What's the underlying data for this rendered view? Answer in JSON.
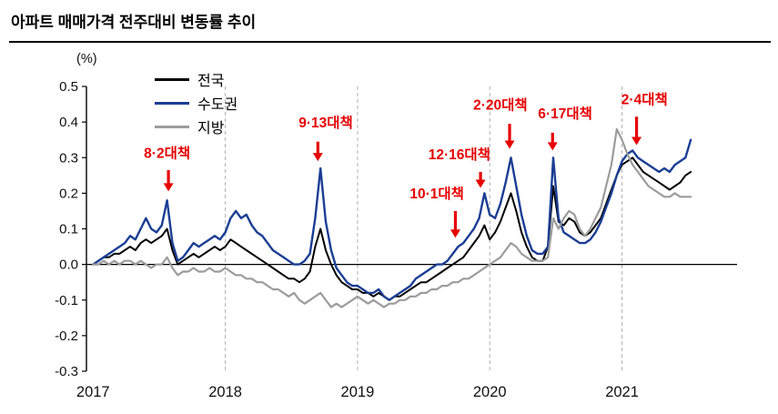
{
  "chart_data": {
    "type": "line",
    "title": "아파트 매매가격 전주대비 변동률 추이",
    "unit_label": "(%)",
    "xlabel": "",
    "ylabel": "(%)",
    "annotation_color": "#e60000",
    "gridline_color": "#b0b0b0",
    "legend": {
      "position": "top-left-inside"
    },
    "x_axis": {
      "min": 2016.95,
      "max": 2021.87,
      "tick_years": [
        2017,
        2018,
        2019,
        2020,
        2021
      ],
      "gridline_years": [
        2018,
        2019,
        2020,
        2021
      ]
    },
    "y_axis": {
      "min": -0.3,
      "max": 0.5,
      "ticks": [
        0.5,
        0.4,
        0.3,
        0.2,
        0.1,
        0,
        -0.1,
        -0.2,
        -0.3
      ]
    },
    "x_start": 2017.0,
    "x_step": 0.04,
    "series": [
      {
        "name": "전국",
        "key": "nationwide",
        "color": "#000000",
        "width": 2,
        "values": [
          0,
          0.01,
          0.02,
          0.02,
          0.03,
          0.03,
          0.04,
          0.05,
          0.04,
          0.06,
          0.07,
          0.06,
          0.07,
          0.08,
          0.1,
          0.04,
          0,
          0.01,
          0.02,
          0.03,
          0.02,
          0.03,
          0.04,
          0.05,
          0.04,
          0.05,
          0.07,
          0.06,
          0.05,
          0.04,
          0.03,
          0.02,
          0.01,
          0,
          -0.01,
          -0.02,
          -0.03,
          -0.04,
          -0.04,
          -0.05,
          -0.04,
          -0.02,
          0.05,
          0.1,
          0.04,
          0,
          -0.03,
          -0.05,
          -0.06,
          -0.07,
          -0.07,
          -0.08,
          -0.08,
          -0.09,
          -0.08,
          -0.09,
          -0.1,
          -0.09,
          -0.09,
          -0.08,
          -0.07,
          -0.06,
          -0.05,
          -0.05,
          -0.04,
          -0.03,
          -0.02,
          -0.01,
          0,
          0.01,
          0.02,
          0.04,
          0.06,
          0.08,
          0.11,
          0.07,
          0.09,
          0.12,
          0.16,
          0.2,
          0.15,
          0.09,
          0.05,
          0.02,
          0.01,
          0.01,
          0.05,
          0.22,
          0.12,
          0.11,
          0.13,
          0.12,
          0.09,
          0.08,
          0.09,
          0.11,
          0.13,
          0.17,
          0.21,
          0.25,
          0.28,
          0.29,
          0.3,
          0.28,
          0.26,
          0.25,
          0.24,
          0.23,
          0.22,
          0.21,
          0.22,
          0.23,
          0.25,
          0.26
        ]
      },
      {
        "name": "수도권",
        "key": "metro",
        "color": "#1b3e94",
        "width": 2.4,
        "values": [
          0,
          0.01,
          0.02,
          0.03,
          0.04,
          0.05,
          0.06,
          0.08,
          0.07,
          0.1,
          0.13,
          0.1,
          0.09,
          0.11,
          0.18,
          0.06,
          0.01,
          0.02,
          0.04,
          0.06,
          0.05,
          0.06,
          0.07,
          0.08,
          0.07,
          0.09,
          0.13,
          0.15,
          0.13,
          0.14,
          0.11,
          0.09,
          0.08,
          0.06,
          0.04,
          0.03,
          0.02,
          0.01,
          0,
          0,
          0.01,
          0.03,
          0.13,
          0.27,
          0.12,
          0.04,
          -0.01,
          -0.03,
          -0.05,
          -0.06,
          -0.06,
          -0.07,
          -0.08,
          -0.08,
          -0.07,
          -0.09,
          -0.1,
          -0.09,
          -0.08,
          -0.07,
          -0.06,
          -0.04,
          -0.03,
          -0.02,
          -0.01,
          0,
          0,
          0.01,
          0.03,
          0.05,
          0.06,
          0.08,
          0.1,
          0.13,
          0.2,
          0.14,
          0.13,
          0.17,
          0.23,
          0.3,
          0.22,
          0.14,
          0.08,
          0.04,
          0.03,
          0.03,
          0.05,
          0.3,
          0.13,
          0.09,
          0.08,
          0.07,
          0.06,
          0.06,
          0.07,
          0.09,
          0.12,
          0.16,
          0.2,
          0.25,
          0.29,
          0.31,
          0.32,
          0.3,
          0.29,
          0.28,
          0.27,
          0.26,
          0.27,
          0.26,
          0.28,
          0.29,
          0.3,
          0.35
        ]
      },
      {
        "name": "지방",
        "key": "provinces",
        "color": "#9c9c9c",
        "width": 2.2,
        "values": [
          0,
          0,
          0.01,
          0,
          0.01,
          0,
          0.01,
          0.01,
          0,
          0.01,
          0,
          -0.01,
          0,
          0,
          0.02,
          -0.01,
          -0.03,
          -0.02,
          -0.02,
          -0.01,
          -0.02,
          -0.02,
          -0.01,
          -0.02,
          -0.02,
          -0.01,
          -0.02,
          -0.03,
          -0.03,
          -0.04,
          -0.04,
          -0.05,
          -0.05,
          -0.06,
          -0.07,
          -0.07,
          -0.08,
          -0.09,
          -0.08,
          -0.1,
          -0.11,
          -0.1,
          -0.09,
          -0.08,
          -0.1,
          -0.12,
          -0.11,
          -0.12,
          -0.11,
          -0.1,
          -0.09,
          -0.1,
          -0.11,
          -0.1,
          -0.11,
          -0.12,
          -0.11,
          -0.11,
          -0.1,
          -0.1,
          -0.09,
          -0.09,
          -0.08,
          -0.08,
          -0.07,
          -0.07,
          -0.06,
          -0.06,
          -0.05,
          -0.05,
          -0.04,
          -0.04,
          -0.03,
          -0.02,
          -0.01,
          0,
          0.01,
          0.02,
          0.04,
          0.06,
          0.05,
          0.03,
          0.02,
          0.01,
          0.01,
          0.01,
          0.02,
          0.13,
          0.1,
          0.13,
          0.15,
          0.14,
          0.1,
          0.08,
          0.1,
          0.13,
          0.16,
          0.22,
          0.28,
          0.38,
          0.35,
          0.31,
          0.28,
          0.26,
          0.24,
          0.22,
          0.21,
          0.2,
          0.19,
          0.19,
          0.2,
          0.19,
          0.19,
          0.19
        ]
      }
    ],
    "annotations": [
      {
        "label": "8·2대책",
        "text_x": 2017.56,
        "text_y": 0.3,
        "arrow_x": 2017.57,
        "arrow_top": 0.265,
        "arrow_tip": 0.205
      },
      {
        "label": "9·13대책",
        "text_x": 2018.76,
        "text_y": 0.385,
        "arrow_x": 2018.7,
        "arrow_top": 0.345,
        "arrow_tip": 0.29
      },
      {
        "label": "10·1대책",
        "text_x": 2019.6,
        "text_y": 0.185,
        "arrow_x": 2019.74,
        "arrow_top": 0.15,
        "arrow_tip": 0.075
      },
      {
        "label": "12·16대책",
        "text_x": 2019.77,
        "text_y": 0.295,
        "arrow_x": 2019.93,
        "arrow_top": 0.26,
        "arrow_tip": 0.215
      },
      {
        "label": "2·20대책",
        "text_x": 2020.08,
        "text_y": 0.435,
        "arrow_x": 2020.15,
        "arrow_top": 0.395,
        "arrow_tip": 0.325
      },
      {
        "label": "6·17대책",
        "text_x": 2020.57,
        "text_y": 0.41,
        "arrow_x": 2020.475,
        "arrow_top": 0.37,
        "arrow_tip": 0.32
      },
      {
        "label": "2·4대책",
        "text_x": 2021.17,
        "text_y": 0.45,
        "arrow_x": 2021.11,
        "arrow_top": 0.415,
        "arrow_tip": 0.335
      }
    ]
  }
}
